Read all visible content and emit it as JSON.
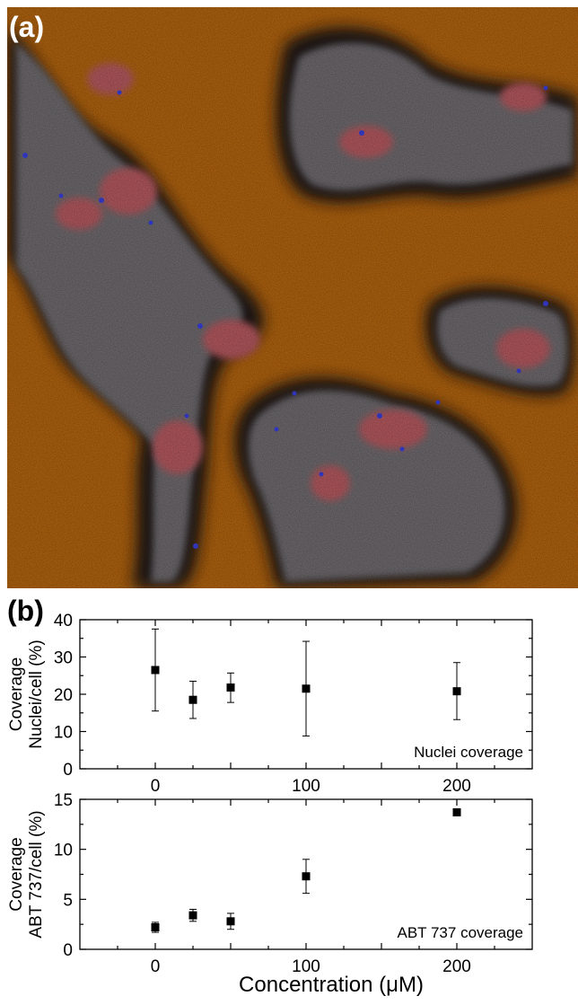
{
  "panel_a_label": "(a)",
  "panel_b_label": "(b)",
  "image": {
    "background_color": "#b4650f",
    "cell_color": "#6f6c70",
    "edge_color": "#1a1412",
    "nuclei_color": "#b85a60",
    "marker_color": "#3a40e0"
  },
  "colors": {
    "axis": "#000000",
    "marker": "#000000"
  },
  "x_label": "Concentration (μM)",
  "chart_data": [
    {
      "type": "scatter",
      "ylabel_lines": [
        "Coverage",
        "Nuclei/cell (%)"
      ],
      "annotation": "Nuclei coverage",
      "xlim": [
        -50,
        250
      ],
      "ylim": [
        0,
        40
      ],
      "xticks": [
        0,
        100,
        200
      ],
      "yticks": [
        0,
        10,
        20,
        30,
        40
      ],
      "points": [
        {
          "x": 0,
          "y": 26.5,
          "err_low": 15.5,
          "err_high": 37.5
        },
        {
          "x": 25,
          "y": 18.5,
          "err_low": 13.5,
          "err_high": 23.5
        },
        {
          "x": 50,
          "y": 21.8,
          "err_low": 17.8,
          "err_high": 25.7
        },
        {
          "x": 100,
          "y": 21.5,
          "err_low": 8.8,
          "err_high": 34.2
        },
        {
          "x": 200,
          "y": 20.8,
          "err_low": 13.2,
          "err_high": 28.5
        }
      ]
    },
    {
      "type": "scatter",
      "ylabel_lines": [
        "Coverage",
        "ABT 737/cell (%)"
      ],
      "annotation": "ABT 737 coverage",
      "xlim": [
        -50,
        250
      ],
      "ylim": [
        0,
        15
      ],
      "xticks": [
        0,
        100,
        200
      ],
      "yticks": [
        0,
        5,
        10,
        15
      ],
      "points": [
        {
          "x": 0,
          "y": 2.2,
          "err_low": 1.7,
          "err_high": 2.7
        },
        {
          "x": 25,
          "y": 3.4,
          "err_low": 2.8,
          "err_high": 4.0
        },
        {
          "x": 50,
          "y": 2.8,
          "err_low": 2.0,
          "err_high": 3.6
        },
        {
          "x": 100,
          "y": 7.3,
          "err_low": 5.6,
          "err_high": 9.0
        },
        {
          "x": 200,
          "y": 13.7,
          "err_low": 13.4,
          "err_high": 14.0
        }
      ]
    }
  ]
}
